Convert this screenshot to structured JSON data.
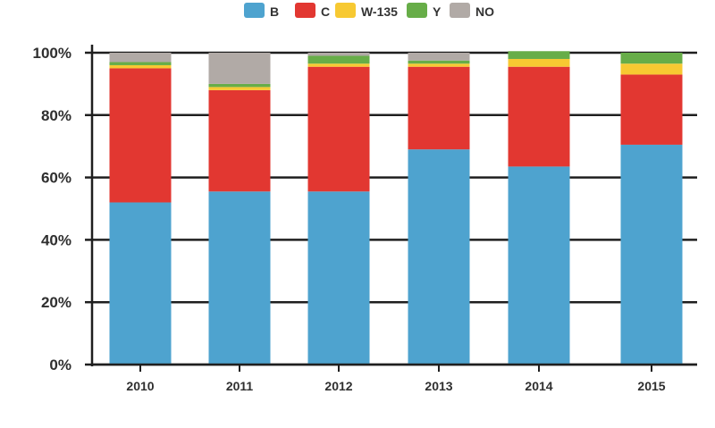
{
  "chart_data": {
    "type": "bar",
    "stacked": true,
    "categories": [
      "2010",
      "2011",
      "2012",
      "2013",
      "2014",
      "2015"
    ],
    "series": [
      {
        "name": "B",
        "color": "#4ea3cf",
        "values": [
          52,
          55.5,
          55.5,
          69,
          63.5,
          70.5
        ]
      },
      {
        "name": "C",
        "color": "#e23731",
        "values": [
          43,
          32.5,
          40,
          26.5,
          32,
          22.5
        ]
      },
      {
        "name": "W-135",
        "color": "#f7c932",
        "values": [
          1,
          1,
          1,
          1,
          2.5,
          3.5
        ]
      },
      {
        "name": "Y",
        "color": "#67ad48",
        "values": [
          1,
          1,
          2.5,
          1,
          2.5,
          3.5
        ]
      },
      {
        "name": "NO",
        "color": "#b1aaa6",
        "values": [
          3,
          10,
          1,
          2.5,
          0,
          0
        ]
      }
    ],
    "y_ticks": [
      "0%",
      "20%",
      "40%",
      "60%",
      "80%",
      "100%"
    ],
    "ylim": [
      0,
      100
    ],
    "grid": true,
    "legend_position": "top"
  }
}
